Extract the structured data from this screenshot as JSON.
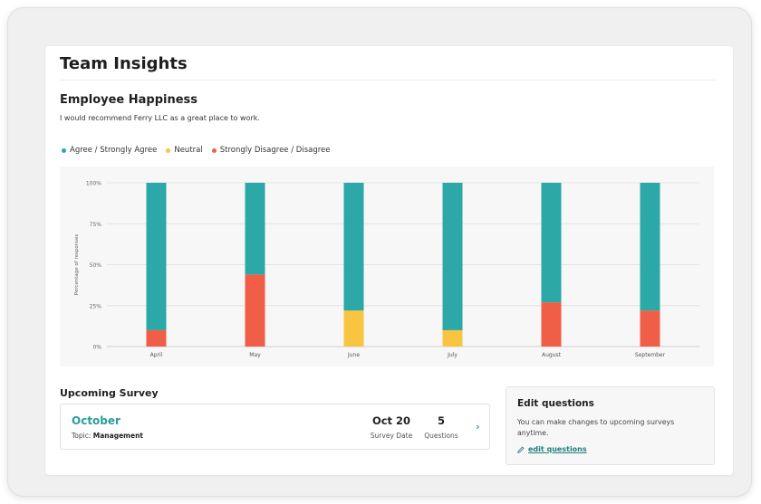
{
  "header": {
    "title": "Team Insights"
  },
  "section": {
    "title": "Employee Happiness",
    "description": "I would recommend Ferry LLC as a great place to work."
  },
  "legend": [
    {
      "label": "Agree / Strongly Agree",
      "color": "#2ba8a7"
    },
    {
      "label": "Neutral",
      "color": "#f9c440"
    },
    {
      "label": "Strongly Disagree / Disagree",
      "color": "#f15e47"
    }
  ],
  "chart_data": {
    "type": "bar",
    "stacked": true,
    "categories": [
      "April",
      "May",
      "June",
      "July",
      "August",
      "September"
    ],
    "series": [
      {
        "name": "Strongly Disagree / Disagree",
        "color": "#f15e47",
        "values": [
          10,
          44,
          0,
          0,
          27,
          22
        ]
      },
      {
        "name": "Neutral",
        "color": "#f9c440",
        "values": [
          0,
          0,
          22,
          10,
          0,
          0
        ]
      },
      {
        "name": "Agree / Strongly Agree",
        "color": "#2ba8a7",
        "values": [
          90,
          56,
          78,
          90,
          73,
          78
        ]
      }
    ],
    "ylabel": "Percentage of responses",
    "yticks": [
      "0%",
      "25%",
      "50%",
      "75%",
      "100%"
    ],
    "ylim": [
      0,
      100
    ],
    "grid": true,
    "legend_position": "top-left"
  },
  "upcoming": {
    "title": "Upcoming Survey",
    "month": "October",
    "topic_label": "Topic:",
    "topic_value": "Management",
    "date_value": "Oct 20",
    "date_label": "Survey Date",
    "questions_value": "5",
    "questions_label": "Questions",
    "chevron": "›"
  },
  "edit": {
    "title": "Edit questions",
    "description": "You can make changes to upcoming surveys anytime.",
    "link_label": "edit questions",
    "icon": "pencil-icon"
  }
}
